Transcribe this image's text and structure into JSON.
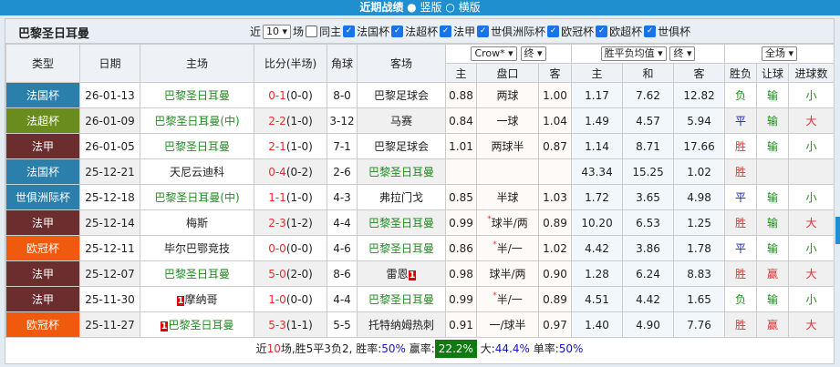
{
  "header": {
    "title": "近期战绩",
    "opt1": "竖版",
    "opt2": "横版"
  },
  "team": "巴黎圣日耳曼",
  "filters": {
    "near": "近",
    "count": "10",
    "unit": "场",
    "same_host": "同主",
    "comps": [
      "法国杯",
      "法超杯",
      "法甲",
      "世俱洲际杯",
      "欧冠杯",
      "欧超杯",
      "世俱杯"
    ]
  },
  "columns": {
    "type": "类型",
    "date": "日期",
    "home": "主场",
    "score": "比分(半场)",
    "corner": "角球",
    "away": "客场",
    "company": "Crow*",
    "company_end": "终",
    "odds_type": "胜平负均值",
    "odds_end": "终",
    "scope": "全场",
    "h_home": "主",
    "h_line": "盘口",
    "h_away": "客",
    "o_home": "主",
    "o_draw": "和",
    "o_away": "客",
    "result": "胜负",
    "handicap": "让球",
    "goals": "进球数"
  },
  "colors": {
    "法国杯": "#2b7fab",
    "法超杯": "#6a8c1c",
    "法甲": "#6b2d2d",
    "欧冠杯": "#f05a0c",
    "世俱洲际杯": "#2b7fab"
  },
  "rows": [
    {
      "type": "法国杯",
      "date": "26-01-13",
      "home": "巴黎圣日耳曼",
      "hg": true,
      "score": "0-1",
      "half": "(0-0)",
      "corner": "8-0",
      "away": "巴黎足球会",
      "ag": false,
      "h1": "0.88",
      "line": "两球",
      "h2": "1.00",
      "o1": "1.17",
      "o2": "7.62",
      "o3": "12.82",
      "res": "负",
      "hcr": "输",
      "goals": "小"
    },
    {
      "type": "法超杯",
      "date": "26-01-09",
      "home": "巴黎圣日耳曼(中)",
      "hg": true,
      "score": "2-2",
      "half": "(1-0)",
      "corner": "3-12",
      "away": "马赛",
      "ag": false,
      "h1": "0.84",
      "line": "一球",
      "h2": "1.04",
      "o1": "1.49",
      "o2": "4.57",
      "o3": "5.94",
      "res": "平",
      "hcr": "输",
      "goals": "大"
    },
    {
      "type": "法甲",
      "date": "26-01-05",
      "home": "巴黎圣日耳曼",
      "hg": true,
      "score": "2-1",
      "half": "(1-0)",
      "corner": "7-1",
      "away": "巴黎足球会",
      "ag": false,
      "h1": "1.01",
      "line": "两球半",
      "h2": "0.87",
      "o1": "1.14",
      "o2": "8.71",
      "o3": "17.66",
      "res": "胜",
      "hcr": "输",
      "goals": "小"
    },
    {
      "type": "法国杯",
      "date": "25-12-21",
      "home": "天尼云迪科",
      "hg": false,
      "score": "0-4",
      "half": "(0-2)",
      "corner": "2-6",
      "away": "巴黎圣日耳曼",
      "ag": true,
      "h1": "",
      "line": "",
      "h2": "",
      "o1": "43.34",
      "o2": "15.25",
      "o3": "1.02",
      "res": "胜",
      "hcr": "",
      "goals": ""
    },
    {
      "type": "世俱洲际杯",
      "date": "25-12-18",
      "home": "巴黎圣日耳曼(中)",
      "hg": true,
      "score": "1-1",
      "half": "(1-0)",
      "corner": "4-3",
      "away": "弗拉门戈",
      "ag": false,
      "h1": "0.85",
      "line": "半球",
      "h2": "1.03",
      "o1": "1.72",
      "o2": "3.65",
      "o3": "4.98",
      "res": "平",
      "hcr": "输",
      "goals": "小"
    },
    {
      "type": "法甲",
      "date": "25-12-14",
      "home": "梅斯",
      "hg": false,
      "score": "2-3",
      "half": "(1-2)",
      "corner": "4-4",
      "away": "巴黎圣日耳曼",
      "ag": true,
      "h1": "0.99",
      "line": "球半/两",
      "star": true,
      "h2": "0.89",
      "o1": "10.20",
      "o2": "6.53",
      "o3": "1.25",
      "res": "胜",
      "hcr": "输",
      "goals": "大"
    },
    {
      "type": "欧冠杯",
      "date": "25-12-11",
      "home": "毕尔巴鄂竞技",
      "hg": false,
      "score": "0-0",
      "half": "(0-0)",
      "corner": "4-6",
      "away": "巴黎圣日耳曼",
      "ag": true,
      "h1": "0.86",
      "line": "半/一",
      "star": true,
      "h2": "1.02",
      "o1": "4.42",
      "o2": "3.86",
      "o3": "1.78",
      "res": "平",
      "hcr": "输",
      "goals": "小"
    },
    {
      "type": "法甲",
      "date": "25-12-07",
      "home": "巴黎圣日耳曼",
      "hg": true,
      "score": "5-0",
      "half": "(2-0)",
      "corner": "8-6",
      "away": "雷恩",
      "ag": false,
      "away_red": "1",
      "h1": "0.98",
      "line": "球半/两",
      "h2": "0.90",
      "o1": "1.28",
      "o2": "6.24",
      "o3": "8.83",
      "res": "胜",
      "hcr": "赢",
      "goals": "大"
    },
    {
      "type": "法甲",
      "date": "25-11-30",
      "home": "摩纳哥",
      "hg": false,
      "home_red": "1",
      "score": "1-0",
      "half": "(0-0)",
      "corner": "4-4",
      "away": "巴黎圣日耳曼",
      "ag": true,
      "h1": "0.99",
      "line": "半/一",
      "star": true,
      "h2": "0.89",
      "o1": "4.51",
      "o2": "4.42",
      "o3": "1.65",
      "res": "负",
      "hcr": "输",
      "goals": "小"
    },
    {
      "type": "欧冠杯",
      "date": "25-11-27",
      "home": "巴黎圣日耳曼",
      "hg": true,
      "home_red": "1",
      "score": "5-3",
      "half": "(1-1)",
      "corner": "5-5",
      "away": "托特纳姆热刺",
      "ag": false,
      "h1": "0.91",
      "line": "一/球半",
      "h2": "0.97",
      "o1": "1.40",
      "o2": "4.90",
      "o3": "7.76",
      "res": "胜",
      "hcr": "赢",
      "goals": "大"
    }
  ],
  "footer": {
    "p1": "近",
    "n": "10",
    "p2": "场,胜5平3负2, 胜率:",
    "winrate": "50%",
    "p3": " 赢率:",
    "winpct": "22.2%",
    "p4": " 大:",
    "big": "44.4%",
    "p5": " 单率:",
    "odd": "50%"
  }
}
